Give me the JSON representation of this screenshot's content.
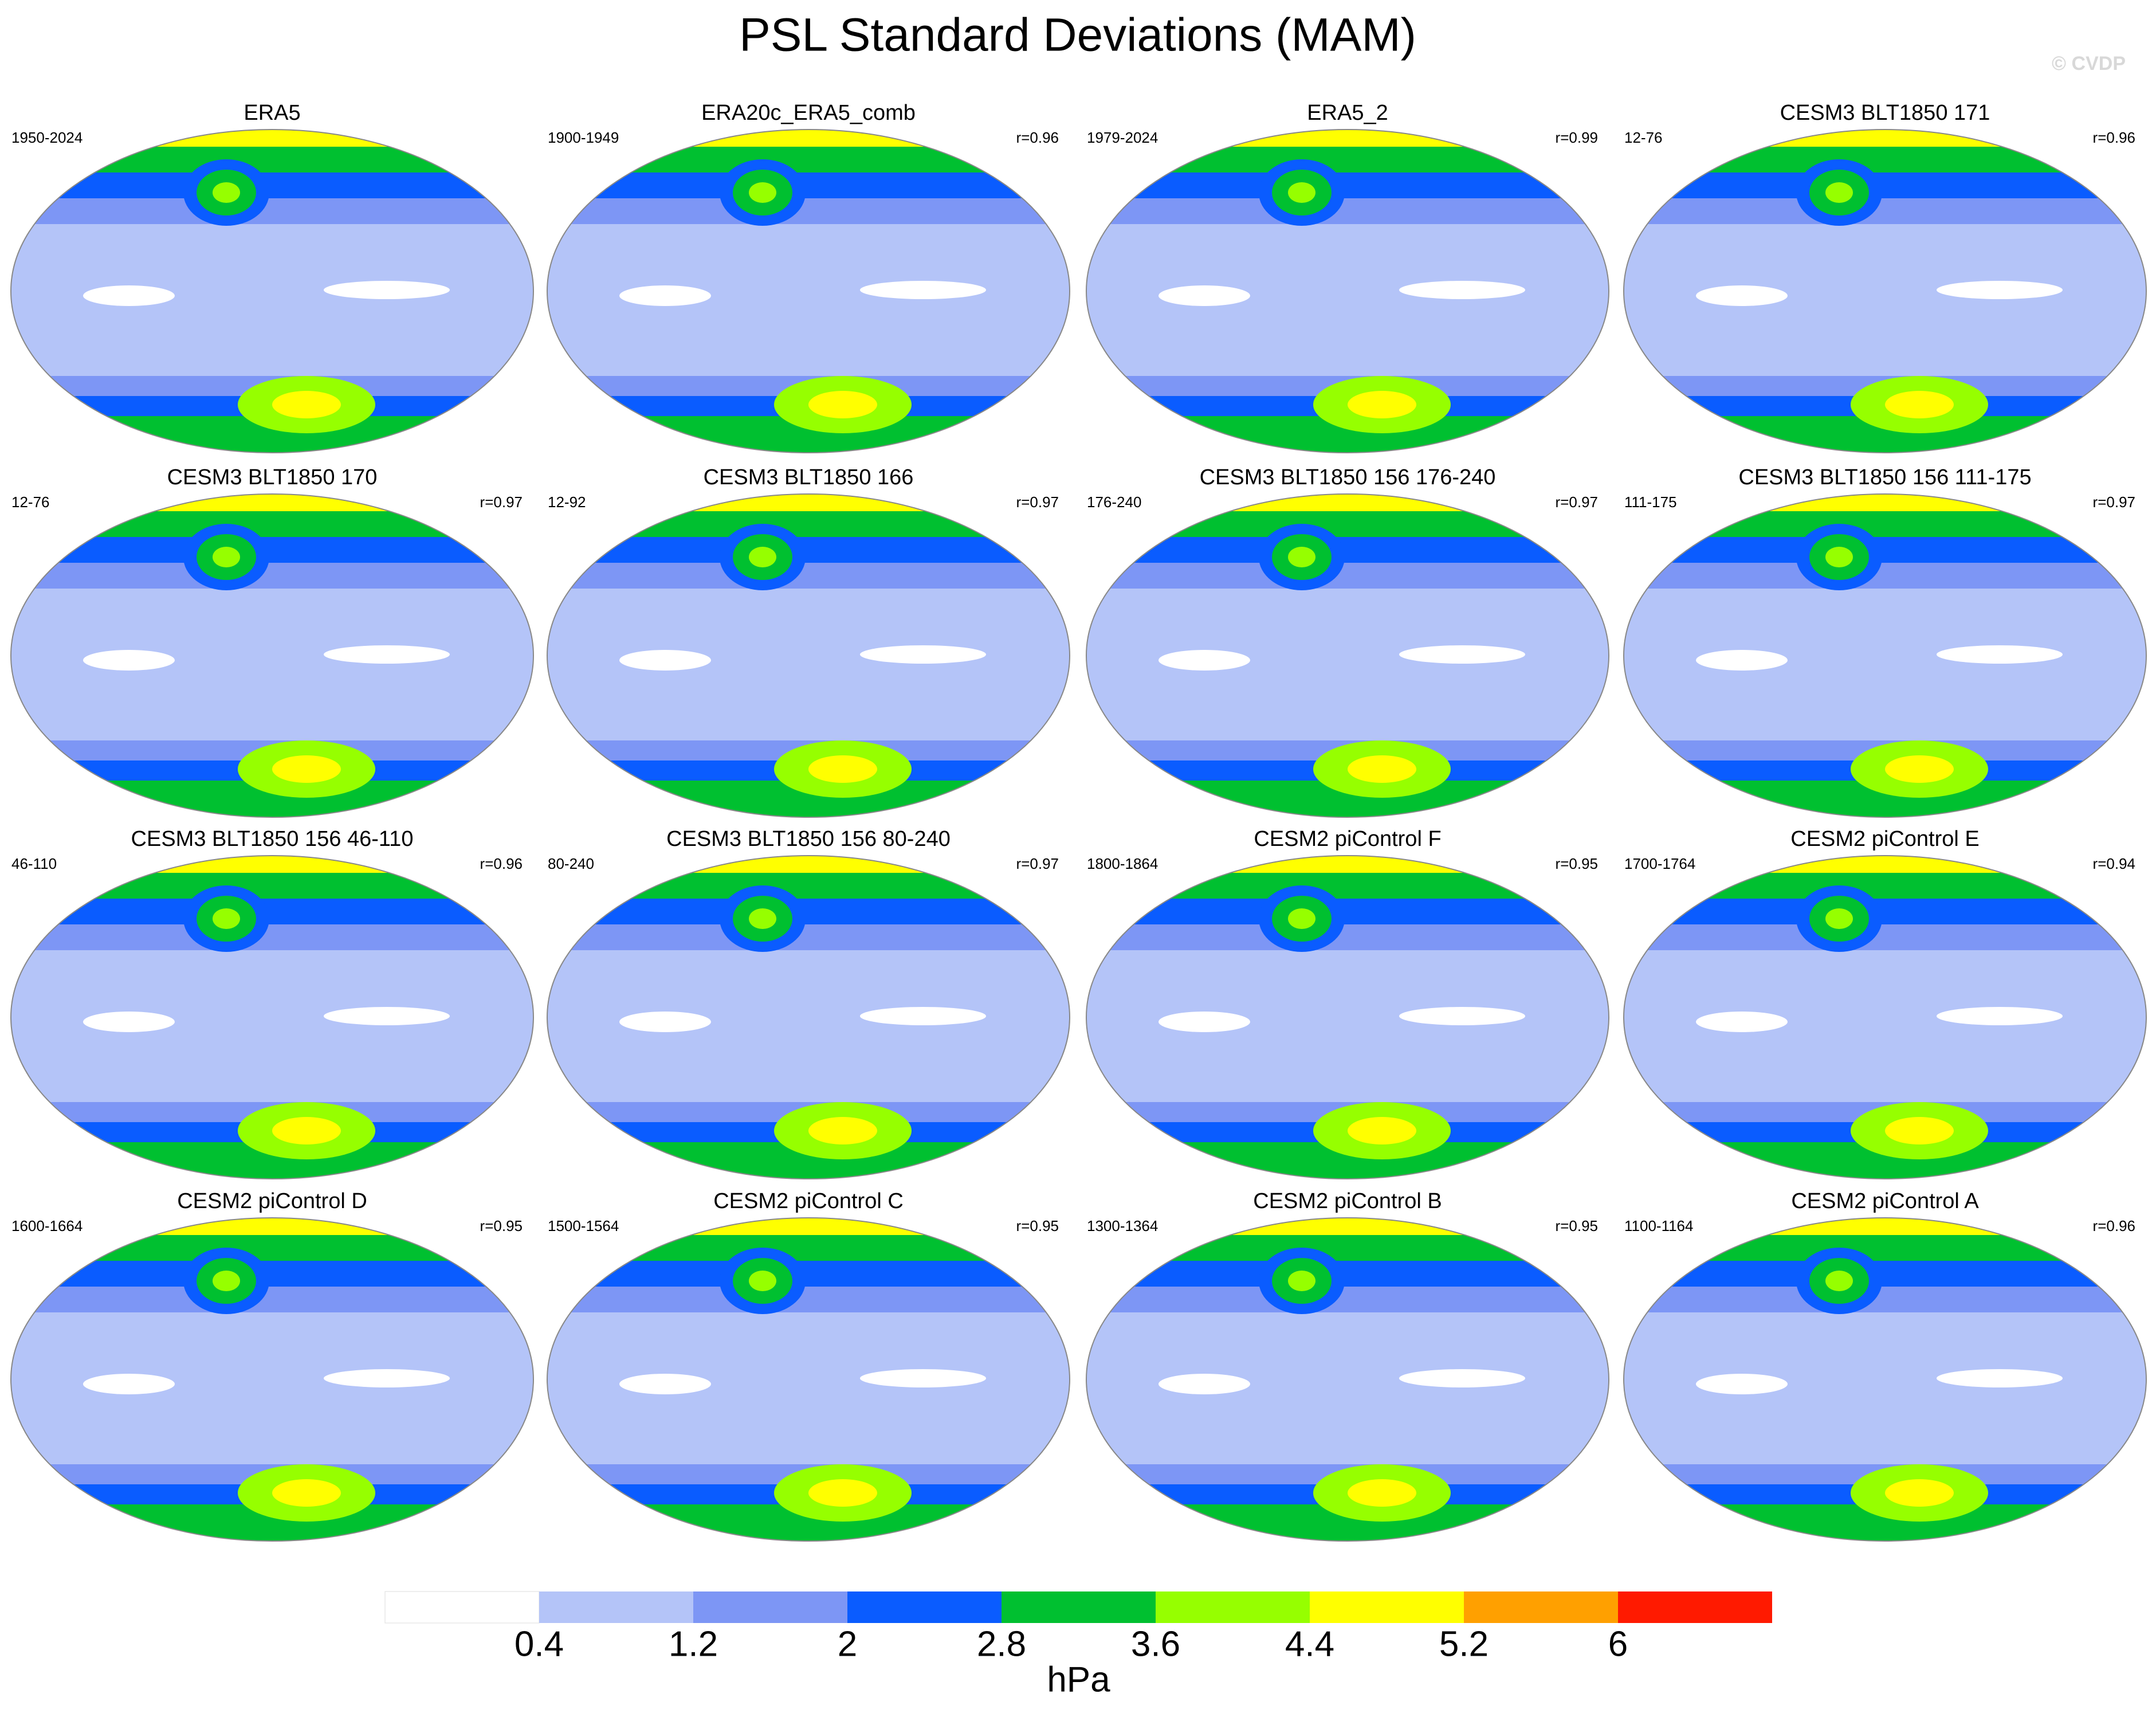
{
  "title": "PSL Standard Deviations (MAM)",
  "watermark": "© CVDP",
  "panels": [
    {
      "title": "ERA5",
      "years": "1950-2024"
    },
    {
      "title": "ERA20c_ERA5_comb",
      "years": "1900-1949",
      "r": "r=0.96"
    },
    {
      "title": "ERA5_2",
      "years": "1979-2024",
      "r": "r=0.99"
    },
    {
      "title": "CESM3 BLT1850 171",
      "years": "12-76",
      "r": "r=0.96"
    },
    {
      "title": "CESM3 BLT1850 170",
      "years": "12-76",
      "r": "r=0.97"
    },
    {
      "title": "CESM3 BLT1850 166",
      "years": "12-92",
      "r": "r=0.97"
    },
    {
      "title": "CESM3 BLT1850 156 176-240",
      "years": "176-240",
      "r": "r=0.97"
    },
    {
      "title": "CESM3 BLT1850 156 111-175",
      "years": "111-175",
      "r": "r=0.97"
    },
    {
      "title": "CESM3 BLT1850 156 46-110",
      "years": "46-110",
      "r": "r=0.96"
    },
    {
      "title": "CESM3 BLT1850 156 80-240",
      "years": "80-240",
      "r": "r=0.97"
    },
    {
      "title": "CESM2 piControl F",
      "years": "1800-1864",
      "r": "r=0.95"
    },
    {
      "title": "CESM2 piControl E",
      "years": "1700-1764",
      "r": "r=0.94"
    },
    {
      "title": "CESM2 piControl D",
      "years": "1600-1664",
      "r": "r=0.95"
    },
    {
      "title": "CESM2 piControl C",
      "years": "1500-1564",
      "r": "r=0.95"
    },
    {
      "title": "CESM2 piControl B",
      "years": "1300-1364",
      "r": "r=0.95"
    },
    {
      "title": "CESM2 piControl A",
      "years": "1100-1164",
      "r": "r=0.96"
    }
  ],
  "colorbar": {
    "colors": [
      "#ffffff",
      "#b4c4f8",
      "#7d96f5",
      "#0a5cff",
      "#00c030",
      "#96ff00",
      "#ffff00",
      "#ffa000",
      "#ff1a00"
    ],
    "labels": [
      0.4,
      1.2,
      2,
      2.8,
      3.6,
      4.4,
      5.2,
      6
    ],
    "unit": "hPa"
  }
}
